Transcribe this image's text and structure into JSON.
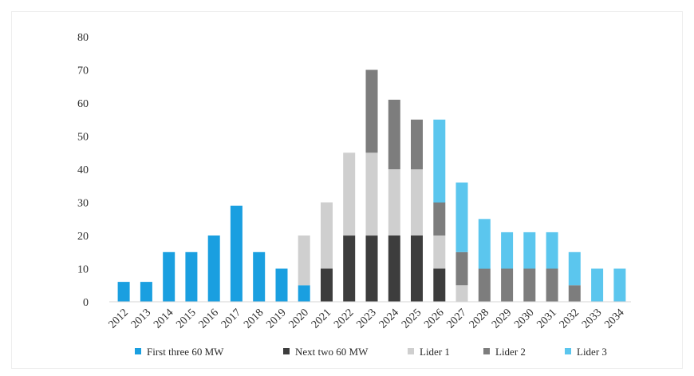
{
  "chart_data": {
    "type": "bar",
    "stacked": true,
    "categories": [
      "2012",
      "2013",
      "2014",
      "2015",
      "2016",
      "2017",
      "2018",
      "2019",
      "2020",
      "2021",
      "2022",
      "2023",
      "2024",
      "2025",
      "2026",
      "2027",
      "2028",
      "2029",
      "2030",
      "2031",
      "2032",
      "2033",
      "2034"
    ],
    "ylim": [
      0,
      80
    ],
    "yticks": [
      0,
      10,
      20,
      30,
      40,
      50,
      60,
      70,
      80
    ],
    "grid": false,
    "legend_position": "bottom",
    "series": [
      {
        "name": "First three 60 MW",
        "color": "#1a9fe0",
        "values": [
          6,
          6,
          15,
          15,
          20,
          29,
          15,
          10,
          5,
          0,
          0,
          0,
          0,
          0,
          0,
          0,
          0,
          0,
          0,
          0,
          0,
          0,
          0
        ]
      },
      {
        "name": "Next two 60 MW",
        "color": "#3d3d3d",
        "values": [
          0,
          0,
          0,
          0,
          0,
          0,
          0,
          0,
          0,
          10,
          20,
          20,
          20,
          20,
          10,
          0,
          0,
          0,
          0,
          0,
          0,
          0,
          0
        ]
      },
      {
        "name": "Lider 1",
        "color": "#cfcfcf",
        "values": [
          0,
          0,
          0,
          0,
          0,
          0,
          0,
          0,
          15,
          20,
          25,
          25,
          20,
          20,
          10,
          5,
          0,
          0,
          0,
          0,
          0,
          0,
          0
        ]
      },
      {
        "name": "Lider 2",
        "color": "#7d7d7d",
        "values": [
          0,
          0,
          0,
          0,
          0,
          0,
          0,
          0,
          0,
          0,
          0,
          25,
          21,
          15,
          10,
          10,
          10,
          10,
          10,
          10,
          5,
          0,
          0
        ]
      },
      {
        "name": "Lider 3",
        "color": "#5bc6ee",
        "values": [
          0,
          0,
          0,
          0,
          0,
          0,
          0,
          0,
          0,
          0,
          0,
          0,
          0,
          0,
          25,
          21,
          15,
          11,
          11,
          11,
          10,
          10,
          10
        ]
      }
    ]
  }
}
